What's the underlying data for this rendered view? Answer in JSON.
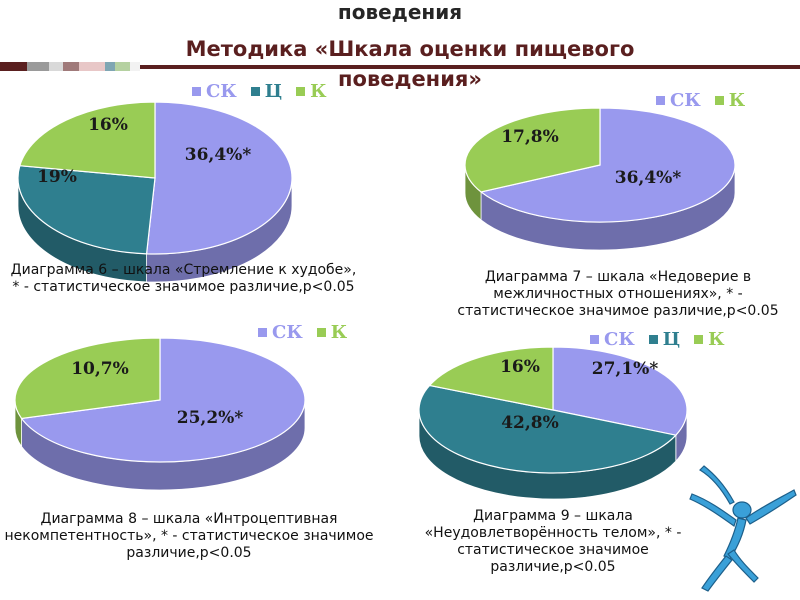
{
  "slide": {
    "title_top": "поведения",
    "title_line1": "Методика «Шкала оценки пищевого",
    "title_line2": "поведения»",
    "stripe_colors": [
      "#5a1f1f",
      "#9a9a9a",
      "#d9d9d9",
      "#a07a7a",
      "#e8c7c7",
      "#7fa6b3",
      "#b5d1a1",
      "#f2f2f2",
      "#5a1f1f"
    ]
  },
  "colors": {
    "СК": "#9999ee",
    "Ц": "#2f7f8f",
    "К": "#99cc55"
  },
  "chart_data": [
    {
      "type": "pie",
      "series_names": [
        "СК",
        "Ц",
        "К"
      ],
      "values": [
        36.4,
        19,
        16
      ],
      "labels": [
        "36,4%*",
        "19%",
        "16%"
      ],
      "caption": "Диаграмма 6 – шкала «Стремление к худобе», * - статистическое значимое различие,р<0.05"
    },
    {
      "type": "pie",
      "series_names": [
        "СК",
        "К"
      ],
      "values": [
        36.4,
        17.8
      ],
      "labels": [
        "36,4%*",
        "17,8%"
      ],
      "caption": "Диаграмма 7 – шкала «Недоверие в межличностных отношениях», * - статистическое значимое различие,р<0.05"
    },
    {
      "type": "pie",
      "series_names": [
        "СК",
        "К"
      ],
      "values": [
        25.2,
        10.7
      ],
      "labels": [
        "25,2%*",
        "10,7%"
      ],
      "caption": "Диаграмма 8 – шкала «Интроцептивная некомпетентность», * - статистическое значимое различие,р<0.05"
    },
    {
      "type": "pie",
      "series_names": [
        "СК",
        "Ц",
        "К"
      ],
      "values": [
        27.1,
        42.8,
        16
      ],
      "labels": [
        "27,1%*",
        "42,8%",
        "16%"
      ],
      "caption": "Диаграмма 9 – шкала «Неудовлетворённость телом», * - статистическое значимое различие,р<0.05"
    }
  ]
}
